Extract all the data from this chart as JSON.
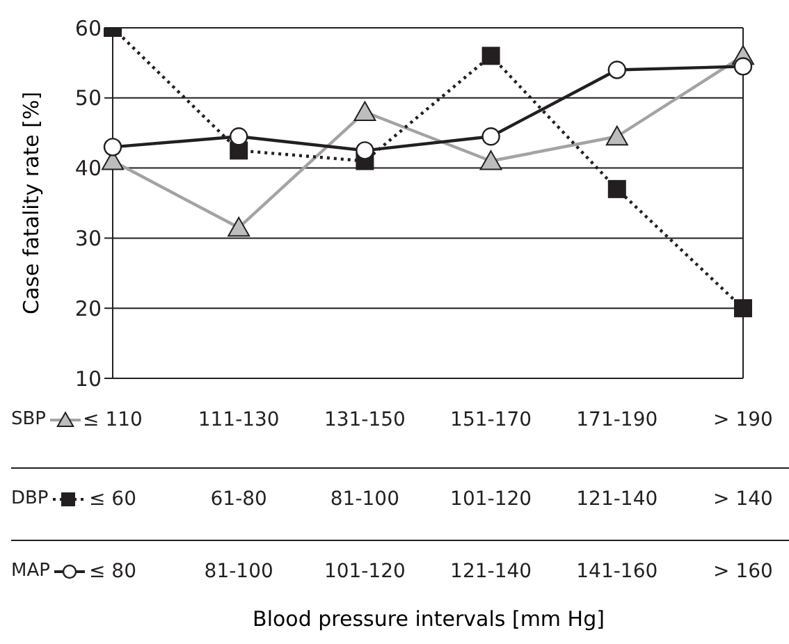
{
  "chart_data": {
    "type": "line",
    "ylabel": "Case fatality rate [%]",
    "categories": [
      "≤ 110",
      "111-130",
      "131-150",
      "151-170",
      "171-190",
      "> 190"
    ],
    "series": [
      {
        "name": "SBP",
        "color": "#a3a3a3",
        "marker": "triangle",
        "line_style": "solid",
        "values": [
          41,
          31.5,
          48,
          41,
          44.5,
          56
        ]
      },
      {
        "name": "DBP",
        "color": "#231f20",
        "marker": "square",
        "line_style": "dotted",
        "values": [
          60,
          42.5,
          41,
          56,
          37,
          20
        ]
      },
      {
        "name": "MAP",
        "color": "#231f20",
        "marker": "circle",
        "line_style": "solid",
        "values": [
          43,
          44.5,
          42.5,
          44.5,
          54,
          54.5
        ]
      }
    ],
    "annotations": [
      "≤ 60",
      "61-80",
      "81-100",
      "101-120",
      "121-140",
      "> 140",
      "≤ 80",
      "81-100",
      "101-120",
      "121-140",
      "141-160",
      "> 160",
      "Blood pressure intervals [mm Hg]"
    ],
    "ylim": [
      10,
      60
    ],
    "yticks": [
      10,
      20,
      30,
      40,
      50,
      60
    ],
    "grid": "y",
    "legend": "bottom"
  }
}
